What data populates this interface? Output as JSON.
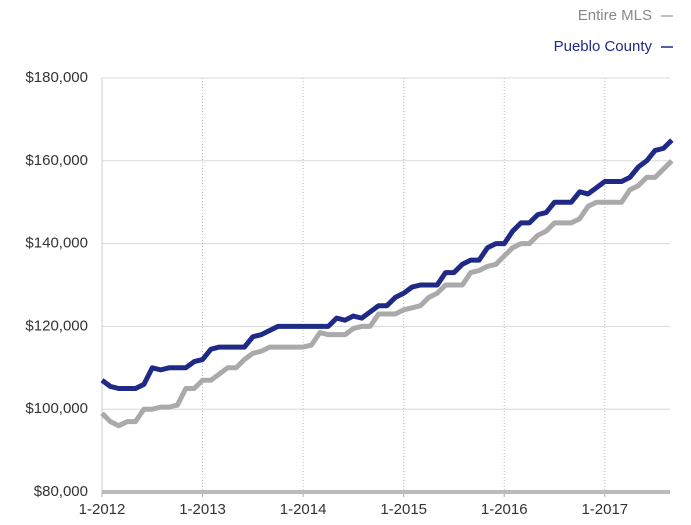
{
  "chart_data": {
    "type": "line",
    "categories": [
      "1-2012",
      null,
      null,
      null,
      null,
      null,
      null,
      null,
      null,
      null,
      null,
      null,
      "1-2013",
      null,
      null,
      null,
      null,
      null,
      null,
      null,
      null,
      null,
      null,
      null,
      "1-2014",
      null,
      null,
      null,
      null,
      null,
      null,
      null,
      null,
      null,
      null,
      null,
      "1-2015",
      null,
      null,
      null,
      null,
      null,
      null,
      null,
      null,
      null,
      null,
      null,
      "1-2016",
      null,
      null,
      null,
      null,
      null,
      null,
      null,
      null,
      null,
      null,
      null,
      "1-2017",
      null,
      null,
      null,
      null,
      null,
      null,
      null,
      null
    ],
    "series": [
      {
        "name": "Entire MLS",
        "color": "#aaaaaa",
        "values": [
          99000,
          97000,
          96000,
          97000,
          97000,
          100000,
          100000,
          100500,
          100500,
          101000,
          105000,
          105000,
          107000,
          107000,
          108500,
          110000,
          110000,
          112000,
          113500,
          114000,
          115000,
          115000,
          115000,
          115000,
          115000,
          115500,
          118500,
          118000,
          118000,
          118000,
          119500,
          120000,
          120000,
          123000,
          123000,
          123000,
          124000,
          124500,
          125000,
          127000,
          128000,
          130000,
          130000,
          130000,
          133000,
          133500,
          134500,
          135000,
          137000,
          139000,
          140000,
          140000,
          142000,
          143000,
          145000,
          145000,
          145000,
          146000,
          149000,
          150000,
          150000,
          150000,
          150000,
          153000,
          154000,
          156000,
          156000,
          158000,
          160000
        ]
      },
      {
        "name": "Pueblo County",
        "color": "#1f2a87",
        "values": [
          107000,
          105500,
          105000,
          105000,
          105000,
          106000,
          110000,
          109500,
          110000,
          110000,
          110000,
          111500,
          112000,
          114500,
          115000,
          115000,
          115000,
          115000,
          117500,
          118000,
          119000,
          120000,
          120000,
          120000,
          120000,
          120000,
          120000,
          120000,
          122000,
          121500,
          122500,
          122000,
          123500,
          125000,
          125000,
          127000,
          128000,
          129500,
          130000,
          130000,
          130000,
          133000,
          133000,
          135000,
          136000,
          136000,
          139000,
          140000,
          140000,
          143000,
          145000,
          145000,
          147000,
          147500,
          150000,
          150000,
          150000,
          152500,
          152000,
          153500,
          155000,
          155000,
          155000,
          156000,
          158500,
          160000,
          162500,
          163000,
          165000
        ]
      }
    ],
    "ylim": [
      80000,
      180000
    ],
    "yticks": [
      {
        "value": 80000,
        "label": "$80,000"
      },
      {
        "value": 100000,
        "label": "$100,000"
      },
      {
        "value": 120000,
        "label": "$120,000"
      },
      {
        "value": 140000,
        "label": "$140,000"
      },
      {
        "value": 160000,
        "label": "$160,000"
      },
      {
        "value": 180000,
        "label": "$180,000"
      }
    ],
    "grid": true
  }
}
